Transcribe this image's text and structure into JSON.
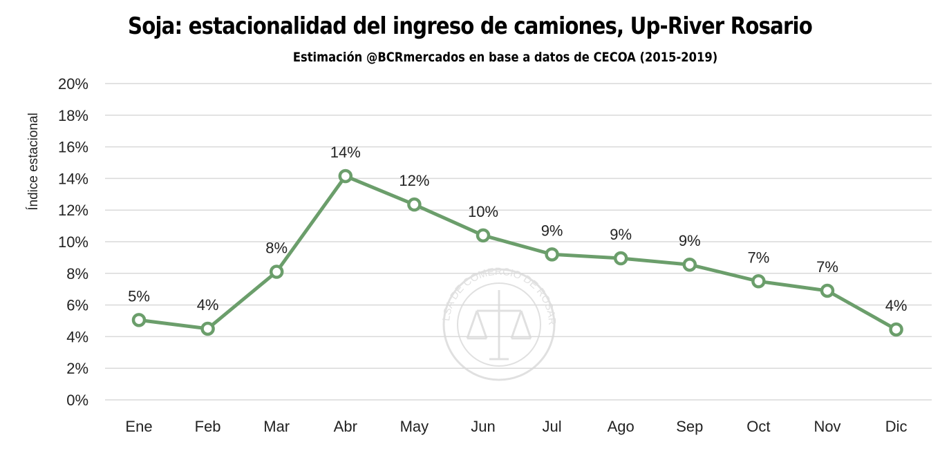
{
  "chart_data": {
    "type": "line",
    "title": "Soja: estacionalidad del ingreso de camiones, Up-River Rosario",
    "subtitle": "Estimación @BCRmercados en base a datos de CECOA (2015-2019)",
    "ylabel": "Índice estacional",
    "xlabel": "",
    "categories": [
      "Ene",
      "Feb",
      "Mar",
      "Abr",
      "May",
      "Jun",
      "Jul",
      "Ago",
      "Sep",
      "Oct",
      "Nov",
      "Dic"
    ],
    "series": [
      {
        "values": [
          5.05,
          4.5,
          8.1,
          14.15,
          12.35,
          10.4,
          9.2,
          8.95,
          8.55,
          7.5,
          6.9,
          4.45
        ],
        "labels": [
          "5%",
          "4%",
          "8%",
          "14%",
          "12%",
          "10%",
          "9%",
          "9%",
          "9%",
          "7%",
          "7%",
          "4%"
        ]
      }
    ],
    "ylim": [
      0,
      20
    ],
    "yticks": [
      "0%",
      "2%",
      "4%",
      "6%",
      "8%",
      "10%",
      "12%",
      "14%",
      "16%",
      "18%",
      "20%"
    ],
    "grid": true,
    "legend": "none",
    "colors": {
      "line": "#6b9e6b",
      "marker_fill": "#ffffff",
      "grid": "#d9d9d9"
    },
    "watermark": "BOLSA DE COMERCIO DE ROSARIO"
  }
}
